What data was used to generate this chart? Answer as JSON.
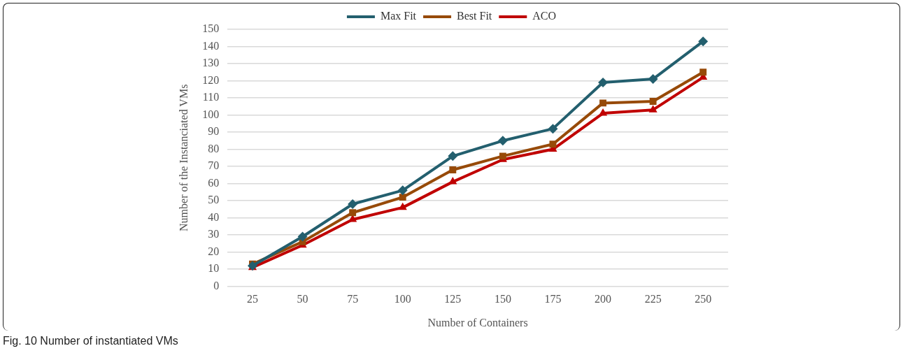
{
  "chart_data": {
    "type": "line",
    "xlabel": "Number of Containers",
    "ylabel": "Number of the Instanciated VMs",
    "categories": [
      "25",
      "50",
      "75",
      "100",
      "125",
      "150",
      "175",
      "200",
      "225",
      "250"
    ],
    "series": [
      {
        "name": "Max Fit",
        "color": "#235f6e",
        "marker": "diamond",
        "values": [
          12,
          29,
          48,
          56,
          76,
          85,
          92,
          119,
          121,
          143
        ]
      },
      {
        "name": "Best Fit",
        "color": "#974a08",
        "marker": "square",
        "values": [
          13,
          26,
          43,
          52,
          68,
          76,
          83,
          107,
          108,
          125
        ]
      },
      {
        "name": "ACO",
        "color": "#c00000",
        "marker": "triangle",
        "values": [
          11,
          24,
          39,
          46,
          61,
          74,
          80,
          101,
          103,
          122
        ]
      }
    ],
    "ylim": [
      0,
      150
    ],
    "yticks": [
      0,
      10,
      20,
      30,
      40,
      50,
      60,
      70,
      80,
      90,
      100,
      110,
      120,
      130,
      140,
      150
    ],
    "grid": "y",
    "legend": "top",
    "line_style": "solid",
    "annotations": [
      "Fig. 10 Number of instantiated VMs"
    ]
  }
}
